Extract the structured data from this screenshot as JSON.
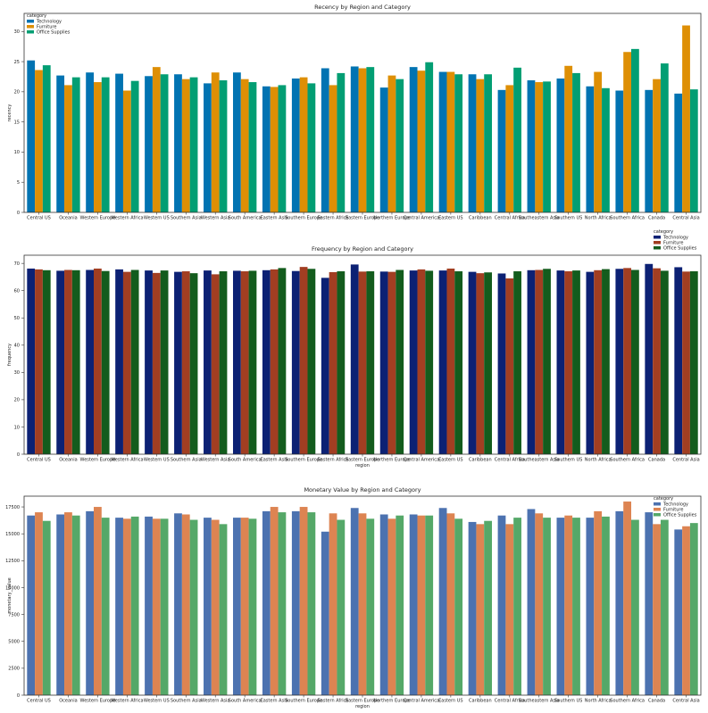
{
  "regions": [
    "Central US",
    "Oceania",
    "Western Europe",
    "Western Africa",
    "Western US",
    "Southern Asia",
    "Western Asia",
    "South America",
    "Eastern Asia",
    "Southern Europe",
    "Eastern Africa",
    "Eastern Europe",
    "Northern Europe",
    "Central America",
    "Eastern US",
    "Caribbean",
    "Central Africa",
    "Southeastern Asia",
    "Southern US",
    "North Africa",
    "Southern Africa",
    "Canada",
    "Central Asia"
  ],
  "chart_data": [
    {
      "type": "bar",
      "title": "Recency by Region and Category",
      "xlabel": "",
      "ylabel": "recency",
      "ylim": [
        0,
        33
      ],
      "yticks": [
        0,
        5,
        10,
        15,
        20,
        25,
        30
      ],
      "legend": {
        "title": "category",
        "placement": "top-left"
      },
      "colors": [
        "#0173b2",
        "#de8f05",
        "#029e73"
      ],
      "series": [
        {
          "name": "Technology",
          "values": [
            25.2,
            22.7,
            23.2,
            23.0,
            22.6,
            22.9,
            21.4,
            23.2,
            20.9,
            22.2,
            23.9,
            24.2,
            20.7,
            24.1,
            23.3,
            22.9,
            20.3,
            21.9,
            22.2,
            20.9,
            20.2,
            20.3,
            19.7
          ]
        },
        {
          "name": "Furniture",
          "values": [
            23.6,
            21.1,
            21.6,
            20.2,
            24.1,
            22.1,
            23.2,
            22.1,
            20.8,
            22.4,
            21.1,
            23.9,
            22.7,
            23.5,
            23.3,
            22.1,
            21.1,
            21.6,
            24.3,
            23.3,
            26.6,
            22.1,
            31.0
          ]
        },
        {
          "name": "Office Supplies",
          "values": [
            24.4,
            22.4,
            22.4,
            21.8,
            22.9,
            22.4,
            21.9,
            21.6,
            21.1,
            21.4,
            23.1,
            24.1,
            22.1,
            24.9,
            22.9,
            22.9,
            24.0,
            21.7,
            23.1,
            20.6,
            27.1,
            24.7,
            20.4
          ]
        }
      ]
    },
    {
      "type": "bar",
      "title": "Frequency by Region and Category",
      "xlabel": "region",
      "ylabel": "frequency",
      "ylim": [
        0,
        73
      ],
      "yticks": [
        0,
        10,
        20,
        30,
        40,
        50,
        60,
        70
      ],
      "legend": {
        "title": "category",
        "placement": "top-right"
      },
      "colors": [
        "#0c2174",
        "#a23e22",
        "#135c1d"
      ],
      "series": [
        {
          "name": "Technology",
          "values": [
            68.1,
            67.3,
            67.6,
            67.8,
            67.4,
            66.9,
            67.4,
            67.3,
            67.5,
            67.2,
            64.7,
            69.6,
            67.0,
            67.4,
            67.4,
            66.9,
            66.3,
            67.5,
            67.4,
            66.9,
            68.0,
            69.8,
            68.6
          ]
        },
        {
          "name": "Furniture",
          "values": [
            67.8,
            67.6,
            68.1,
            66.9,
            66.5,
            67.1,
            66.0,
            67.1,
            67.8,
            68.7,
            66.8,
            67.0,
            66.9,
            67.8,
            68.1,
            66.4,
            64.5,
            67.6,
            67.1,
            67.5,
            68.3,
            68.2,
            67.0
          ]
        },
        {
          "name": "Office Supplies",
          "values": [
            67.5,
            67.5,
            67.2,
            67.6,
            67.4,
            66.4,
            67.1,
            67.3,
            68.3,
            68.0,
            67.1,
            67.1,
            67.6,
            67.3,
            67.1,
            66.7,
            67.1,
            68.0,
            67.4,
            67.9,
            67.6,
            67.3,
            67.1
          ]
        }
      ]
    },
    {
      "type": "bar",
      "title": "Monetary Value by Region and Category",
      "xlabel": "region",
      "ylabel": "monetary_value",
      "ylim": [
        0,
        18500
      ],
      "yticks": [
        0,
        2500,
        5000,
        7500,
        10000,
        12500,
        15000,
        17500
      ],
      "legend": {
        "title": "category",
        "placement": "top-right"
      },
      "colors": [
        "#4c72b0",
        "#dd8452",
        "#55a868"
      ],
      "series": [
        {
          "name": "Technology",
          "values": [
            16700,
            16800,
            17100,
            16500,
            16600,
            16900,
            16500,
            16500,
            17100,
            17100,
            15200,
            17400,
            16800,
            16800,
            17400,
            16100,
            16700,
            17300,
            16500,
            16500,
            17100,
            17000,
            15400
          ]
        },
        {
          "name": "Furniture",
          "values": [
            17000,
            17000,
            17500,
            16400,
            16400,
            16800,
            16300,
            16500,
            17500,
            17500,
            16900,
            16900,
            16400,
            16700,
            16900,
            15900,
            15900,
            16900,
            16700,
            17100,
            18000,
            15900,
            15700
          ]
        },
        {
          "name": "Office Supplies",
          "values": [
            16200,
            16700,
            16500,
            16600,
            16400,
            16300,
            15900,
            16400,
            17000,
            17000,
            16300,
            16400,
            16700,
            16700,
            16400,
            16200,
            16500,
            16500,
            16500,
            16600,
            16300,
            16300,
            16000
          ]
        }
      ]
    }
  ]
}
